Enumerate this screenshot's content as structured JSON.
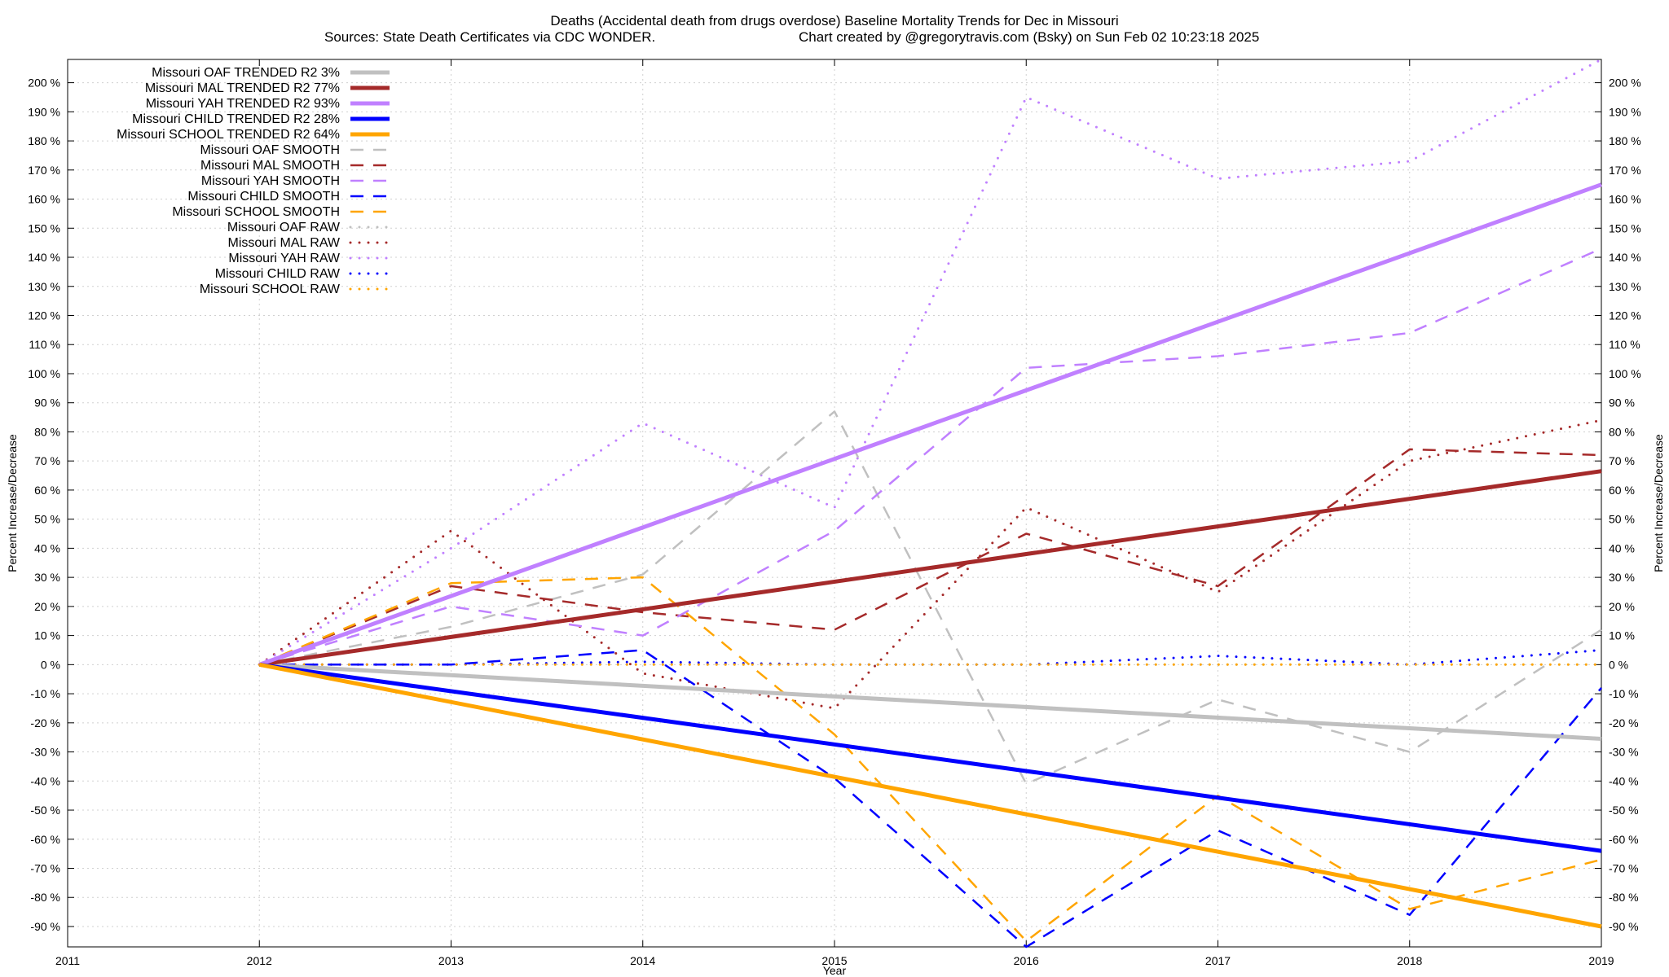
{
  "chart_data": {
    "type": "line",
    "title": "Deaths (Accidental death from drugs overdose)  Baseline Mortality Trends for Dec in Missouri",
    "subtitle_left": "Sources: State Death Certificates via CDC WONDER.",
    "subtitle_right": "Chart created by @gregorytravis.com (Bsky) on Sun Feb 02 10:23:18 2025",
    "xlabel": "Year",
    "ylabel": "Percent Increase/Decrease",
    "ylabel_right": "Percent Increase/Decrease",
    "xlim": [
      2011,
      2019
    ],
    "ylim": [
      -97,
      208
    ],
    "x_ticks": [
      "2011",
      "2012",
      "2013",
      "2014",
      "2015",
      "2016",
      "2017",
      "2018",
      "2019"
    ],
    "y_ticks": [
      {
        "value": 200,
        "label": "200 %"
      },
      {
        "value": 190,
        "label": "190 %"
      },
      {
        "value": 180,
        "label": "180 %"
      },
      {
        "value": 170,
        "label": "170 %"
      },
      {
        "value": 160,
        "label": "160 %"
      },
      {
        "value": 150,
        "label": "150 %"
      },
      {
        "value": 140,
        "label": "140 %"
      },
      {
        "value": 130,
        "label": "130 %"
      },
      {
        "value": 120,
        "label": "120 %"
      },
      {
        "value": 110,
        "label": "110 %"
      },
      {
        "value": 100,
        "label": "100 %"
      },
      {
        "value": 90,
        "label": "90 %"
      },
      {
        "value": 80,
        "label": "80 %"
      },
      {
        "value": 70,
        "label": "70 %"
      },
      {
        "value": 60,
        "label": "60 %"
      },
      {
        "value": 50,
        "label": "50 %"
      },
      {
        "value": 40,
        "label": "40 %"
      },
      {
        "value": 30,
        "label": "30 %"
      },
      {
        "value": 20,
        "label": "20 %"
      },
      {
        "value": 10,
        "label": "10 %"
      },
      {
        "value": 0,
        "label": "0 %"
      },
      {
        "value": -10,
        "label": "-10 %"
      },
      {
        "value": -20,
        "label": "-20 %"
      },
      {
        "value": -30,
        "label": "-30 %"
      },
      {
        "value": -40,
        "label": "-40 %"
      },
      {
        "value": -50,
        "label": "-50 %"
      },
      {
        "value": -60,
        "label": "-60 %"
      },
      {
        "value": -70,
        "label": "-70 %"
      },
      {
        "value": -80,
        "label": "-80 %"
      },
      {
        "value": -90,
        "label": "-90 %"
      }
    ],
    "grid": true,
    "legend_position": "top-left",
    "series": [
      {
        "name": "Missouri OAF TRENDED R2   3%",
        "color": "#c0c0c0",
        "style": "solid",
        "x": [
          2012,
          2019
        ],
        "y": [
          0,
          -25.5
        ]
      },
      {
        "name": "Missouri MAL TRENDED R2  77%",
        "color": "#a52a2a",
        "style": "solid",
        "x": [
          2012,
          2019
        ],
        "y": [
          0,
          66.5
        ]
      },
      {
        "name": "Missouri YAH TRENDED R2  93%",
        "color": "#c080ff",
        "style": "solid",
        "x": [
          2012,
          2019
        ],
        "y": [
          0,
          165
        ]
      },
      {
        "name": "Missouri CHILD TRENDED R2  28%",
        "color": "#0000ff",
        "style": "solid",
        "x": [
          2012,
          2019
        ],
        "y": [
          0,
          -64
        ]
      },
      {
        "name": "Missouri SCHOOL TRENDED R2  64%",
        "color": "#ffa500",
        "style": "solid",
        "x": [
          2012,
          2019
        ],
        "y": [
          0,
          -90
        ]
      },
      {
        "name": "Missouri OAF SMOOTH",
        "color": "#c0c0c0",
        "style": "dashed",
        "x": [
          2012,
          2013,
          2014,
          2015,
          2016,
          2017,
          2018,
          2019
        ],
        "y": [
          0,
          13,
          31,
          87,
          -41,
          -12,
          -30,
          12
        ]
      },
      {
        "name": "Missouri MAL SMOOTH",
        "color": "#a52a2a",
        "style": "dashed",
        "x": [
          2012,
          2013,
          2014,
          2015,
          2016,
          2017,
          2018,
          2019
        ],
        "y": [
          0,
          27,
          18,
          12,
          45,
          27,
          74,
          72
        ]
      },
      {
        "name": "Missouri YAH SMOOTH",
        "color": "#c080ff",
        "style": "dashed",
        "x": [
          2012,
          2013,
          2014,
          2015,
          2016,
          2017,
          2018,
          2019
        ],
        "y": [
          0,
          20,
          10,
          46,
          102,
          106,
          114,
          143
        ]
      },
      {
        "name": "Missouri CHILD SMOOTH",
        "color": "#0000ff",
        "style": "dashed",
        "x": [
          2012,
          2013,
          2014,
          2015,
          2016,
          2017,
          2018,
          2019
        ],
        "y": [
          0,
          0,
          5,
          -39,
          -97,
          -57,
          -86,
          -8
        ]
      },
      {
        "name": "Missouri SCHOOL SMOOTH",
        "color": "#ffa500",
        "style": "dashed",
        "x": [
          2012,
          2013,
          2014,
          2015,
          2016,
          2017,
          2018,
          2019
        ],
        "y": [
          0,
          28,
          30,
          -24,
          -95,
          -45,
          -84,
          -67
        ]
      },
      {
        "name": "Missouri OAF RAW",
        "color": "#c0c0c0",
        "style": "dotted",
        "x": [
          2012,
          2013,
          2014,
          2015,
          2016,
          2017,
          2018,
          2019
        ],
        "y": [
          0,
          0,
          0,
          0,
          0,
          0,
          0,
          0
        ]
      },
      {
        "name": "Missouri MAL RAW",
        "color": "#a52a2a",
        "style": "dotted",
        "x": [
          2012,
          2013,
          2014,
          2015,
          2016,
          2017,
          2018,
          2019
        ],
        "y": [
          0,
          46,
          -3,
          -15,
          54,
          25,
          70,
          84
        ]
      },
      {
        "name": "Missouri YAH RAW",
        "color": "#c080ff",
        "style": "dotted",
        "x": [
          2012,
          2013,
          2014,
          2015,
          2016,
          2017,
          2018,
          2019
        ],
        "y": [
          0,
          40,
          83,
          54,
          195,
          167,
          173,
          208
        ]
      },
      {
        "name": "Missouri CHILD RAW",
        "color": "#0000ff",
        "style": "dotted",
        "x": [
          2012,
          2013,
          2014,
          2015,
          2016,
          2017,
          2018,
          2019
        ],
        "y": [
          0,
          0,
          1,
          0,
          0,
          3,
          0,
          5
        ]
      },
      {
        "name": "Missouri SCHOOL RAW",
        "color": "#ffa500",
        "style": "dotted",
        "x": [
          2012,
          2013,
          2014,
          2015,
          2016,
          2017,
          2018,
          2019
        ],
        "y": [
          0,
          0,
          0,
          0,
          0,
          0,
          0,
          0
        ]
      }
    ]
  }
}
